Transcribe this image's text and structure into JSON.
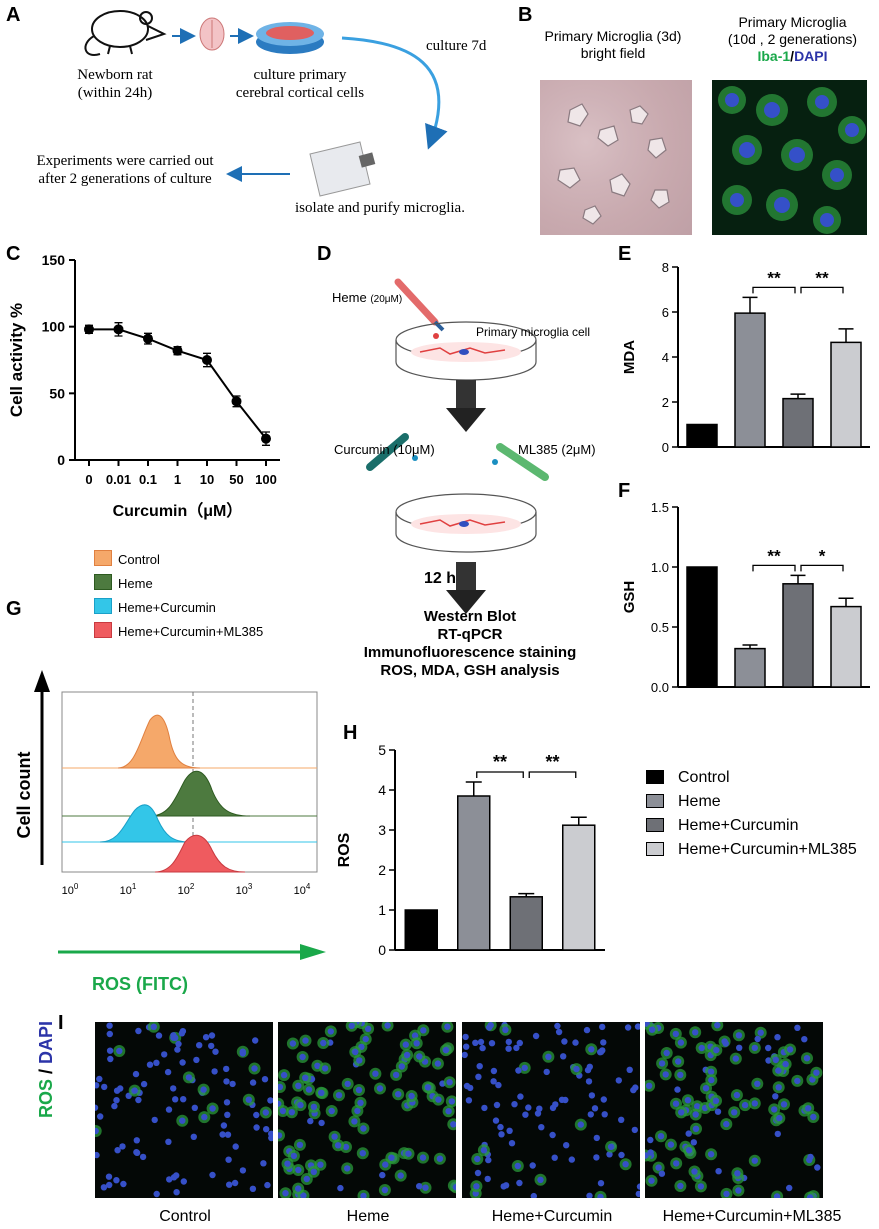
{
  "panels": {
    "A": "A",
    "B": "B",
    "C": "C",
    "D": "D",
    "E": "E",
    "F": "F",
    "G": "G",
    "H": "H",
    "I": "I"
  },
  "panelA": {
    "rat_label": "Newborn rat\n(within 24h)",
    "culture_label": "culture primary\ncerebral cortical cells",
    "culture_days": "culture 7d",
    "isolate_label": "isolate and purify microglia.",
    "experiments_label": "Experiments were carried out\nafter 2 generations of culture"
  },
  "panelB": {
    "left_title": "Primary Microglia (3d)\nbright field",
    "right_title": "Primary Microglia\n(10d , 2 generations)",
    "stain_green": "Iba-1",
    "stain_sep": "/",
    "stain_blue": "DAPI"
  },
  "panelD": {
    "heme": "Heme",
    "heme_conc": "(20μM)",
    "cell": "Primary microglia cell",
    "curcumin": "Curcumin  (10μM)",
    "ml385": "ML385  (2μM)",
    "time": "12 h",
    "analyses": [
      "Western Blot",
      "RT-qPCR",
      "Immunofluorescence staining",
      "ROS, MDA, GSH analysis"
    ]
  },
  "panelG": {
    "legend": [
      {
        "name": "Control",
        "color": "#f5a86a"
      },
      {
        "name": "Heme",
        "color": "#4d7a3f"
      },
      {
        "name": "Heme+Curcumin",
        "color": "#33c6e8"
      },
      {
        "name": "Heme+Curcumin+ML385",
        "color": "#ef5b5f"
      }
    ],
    "ylabel": "Cell count",
    "xlabel": "ROS (FITC)",
    "xticks": [
      "0",
      "1",
      "2",
      "3",
      "4"
    ],
    "tick_base": "10"
  },
  "panelI": {
    "ylabel_green": "ROS",
    "ylabel_sep": " / ",
    "ylabel_blue": "DAPI",
    "labels": [
      "Control",
      "Heme",
      "Heme+Curcumin",
      "Heme+Curcumin+ML385"
    ]
  },
  "barLegend": {
    "entries": [
      "Control",
      "Heme",
      "Heme+Curcumin",
      "Heme+Curcumin+ML385"
    ],
    "colors": [
      "#000000",
      "#8c8f97",
      "#6e7076",
      "#cbccd0"
    ]
  },
  "chart_data": [
    {
      "id": "C",
      "type": "line",
      "categories": [
        "0",
        "0.01",
        "0.1",
        "1",
        "10",
        "50",
        "100"
      ],
      "values": [
        98,
        98,
        91,
        82,
        75,
        44,
        16
      ],
      "errors": [
        3,
        5,
        4,
        3,
        5,
        4,
        5
      ],
      "ylabel": "Cell activity %",
      "xlabel": "Curcumin（μM）",
      "ylim": [
        0,
        150
      ],
      "yticks": [
        0,
        50,
        100,
        150
      ]
    },
    {
      "id": "E",
      "type": "bar",
      "categories": [
        "Control",
        "Heme",
        "Heme+Curcumin",
        "Heme+Curcumin+ML385"
      ],
      "values": [
        1.0,
        5.95,
        2.15,
        4.65
      ],
      "errors": [
        0,
        0.7,
        0.2,
        0.6
      ],
      "ylabel": "MDA",
      "ylim": [
        0,
        8
      ],
      "yticks": [
        0,
        2,
        4,
        6,
        8
      ],
      "significance": [
        {
          "from": 1,
          "to": 2,
          "label": "**"
        },
        {
          "from": 2,
          "to": 3,
          "label": "**"
        }
      ]
    },
    {
      "id": "F",
      "type": "bar",
      "categories": [
        "Control",
        "Heme",
        "Heme+Curcumin",
        "Heme+Curcumin+ML385"
      ],
      "values": [
        1.0,
        0.32,
        0.86,
        0.67
      ],
      "errors": [
        0,
        0.03,
        0.07,
        0.07
      ],
      "ylabel": "GSH",
      "ylim": [
        0,
        1.5
      ],
      "yticks": [
        "0.0",
        "0.5",
        "1.0",
        "1.5"
      ],
      "significance": [
        {
          "from": 1,
          "to": 2,
          "label": "**"
        },
        {
          "from": 2,
          "to": 3,
          "label": "*"
        }
      ]
    },
    {
      "id": "H",
      "type": "bar",
      "categories": [
        "Control",
        "Heme",
        "Heme+Curcumin",
        "Heme+Curcumin+ML385"
      ],
      "values": [
        1.0,
        3.85,
        1.33,
        3.12
      ],
      "errors": [
        0,
        0.35,
        0.08,
        0.2
      ],
      "ylabel": "ROS",
      "ylim": [
        0,
        5
      ],
      "yticks": [
        0,
        1,
        2,
        3,
        4,
        5
      ],
      "significance": [
        {
          "from": 1,
          "to": 2,
          "label": "**"
        },
        {
          "from": 2,
          "to": 3,
          "label": "**"
        }
      ]
    }
  ]
}
